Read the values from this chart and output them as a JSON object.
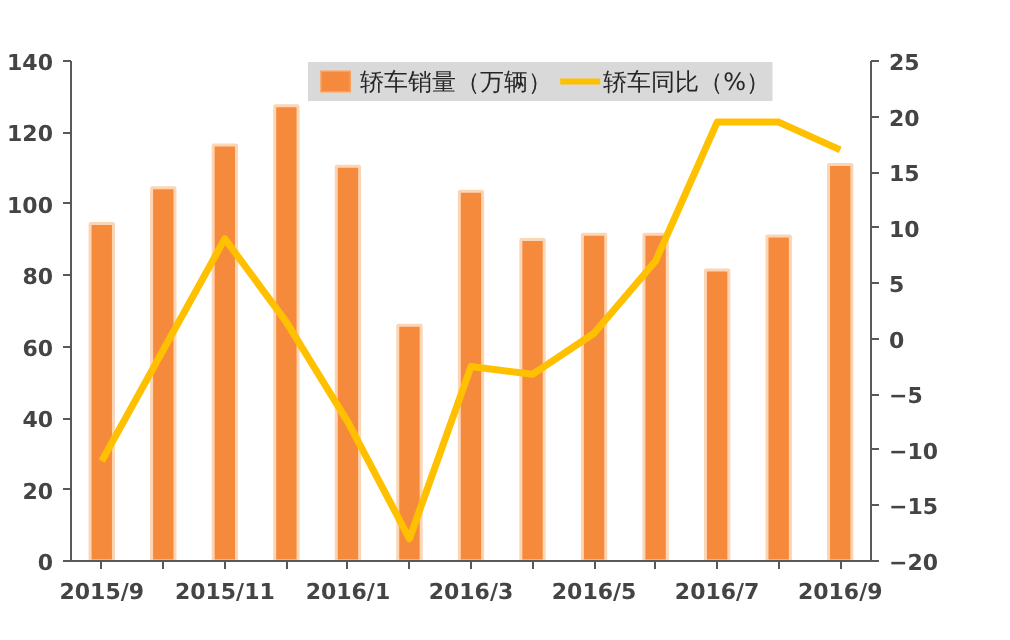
{
  "chart_data": {
    "type": "bar",
    "categories": [
      "2015/9",
      null,
      "2015/11",
      null,
      "2016/1",
      null,
      "2016/3",
      null,
      "2016/5",
      null,
      "2016/7",
      null,
      "2016/9"
    ],
    "series": [
      {
        "name": "轿车销量（万辆）",
        "type": "bar",
        "color": "#f58a3c",
        "values": [
          94.5,
          104.5,
          116.5,
          127.5,
          110.5,
          66,
          103.5,
          90,
          91.5,
          91.5,
          81.5,
          91,
          111
        ]
      },
      {
        "name": "轿车同比（%）",
        "type": "line",
        "axis": "y2",
        "color": "#ffc000",
        "values": [
          -11,
          -1,
          9,
          1.5,
          -7.5,
          -18,
          -2.5,
          -3.2,
          0.5,
          7,
          19.5,
          19.5,
          17
        ]
      }
    ],
    "ylim": [
      0,
      140
    ],
    "yticks": [
      0,
      20,
      40,
      60,
      80,
      100,
      120,
      140
    ],
    "y2lim": [
      -20,
      25
    ],
    "y2ticks": [
      -20,
      -15,
      -10,
      -5,
      0,
      5,
      10,
      15,
      20,
      25
    ],
    "grid": false,
    "legend": "top",
    "line_style": "solid",
    "marker": "none"
  }
}
